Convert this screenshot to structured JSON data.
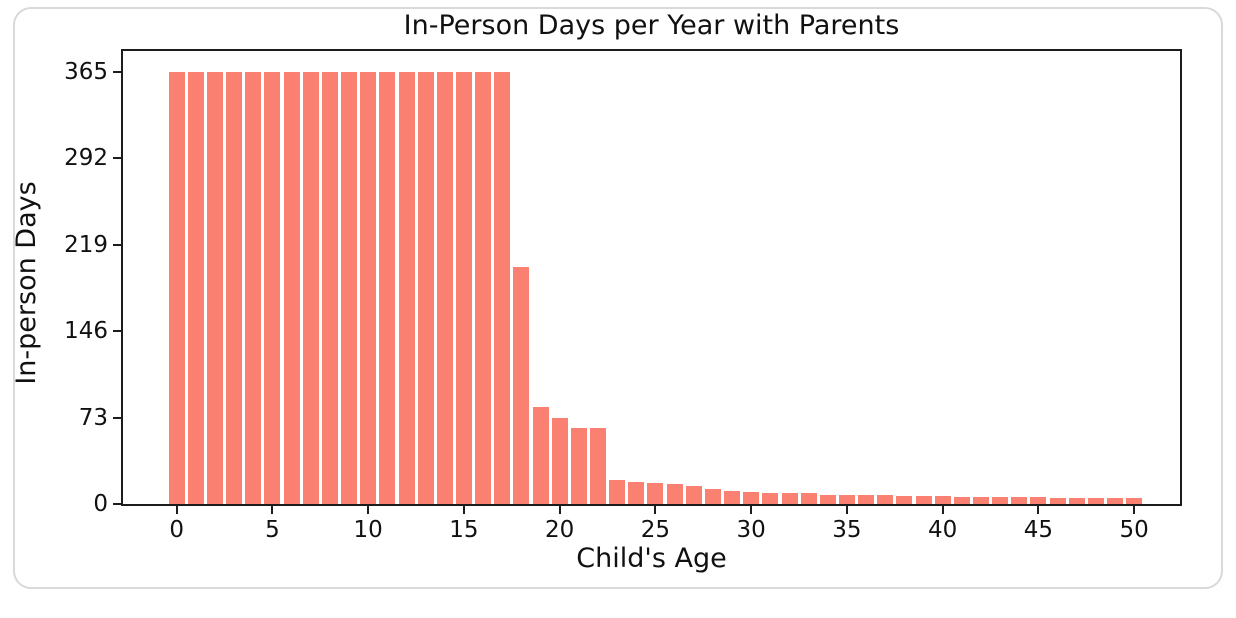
{
  "chart_data": {
    "type": "bar",
    "title": "In-Person Days per Year with Parents",
    "xlabel": "Child's Age",
    "ylabel": "In-person Days",
    "x": [
      0,
      1,
      2,
      3,
      4,
      5,
      6,
      7,
      8,
      9,
      10,
      11,
      12,
      13,
      14,
      15,
      16,
      17,
      18,
      19,
      20,
      21,
      22,
      23,
      24,
      25,
      26,
      27,
      28,
      29,
      30,
      31,
      32,
      33,
      34,
      35,
      36,
      37,
      38,
      39,
      40,
      41,
      42,
      43,
      44,
      45,
      46,
      47,
      48,
      49,
      50
    ],
    "values": [
      365,
      365,
      365,
      365,
      365,
      365,
      365,
      365,
      365,
      365,
      365,
      365,
      365,
      365,
      365,
      365,
      365,
      365,
      200,
      82,
      73,
      64,
      64,
      20,
      19,
      18,
      17,
      15,
      13,
      11,
      10,
      9,
      9,
      9,
      8,
      8,
      8,
      8,
      7,
      7,
      7,
      6,
      6,
      6,
      6,
      6,
      5,
      5,
      5,
      5,
      5
    ],
    "yticks": [
      0,
      73,
      146,
      219,
      292,
      365
    ],
    "xticks": [
      0,
      5,
      10,
      15,
      20,
      25,
      30,
      35,
      40,
      45,
      50
    ],
    "ylim": [
      0,
      383
    ],
    "xlim": [
      -2.9,
      52.4
    ],
    "grid": false,
    "legend": "none",
    "bar_color": "#FA8072",
    "plot_background": "#ffffff",
    "spine_color": "#1c1c1c"
  }
}
